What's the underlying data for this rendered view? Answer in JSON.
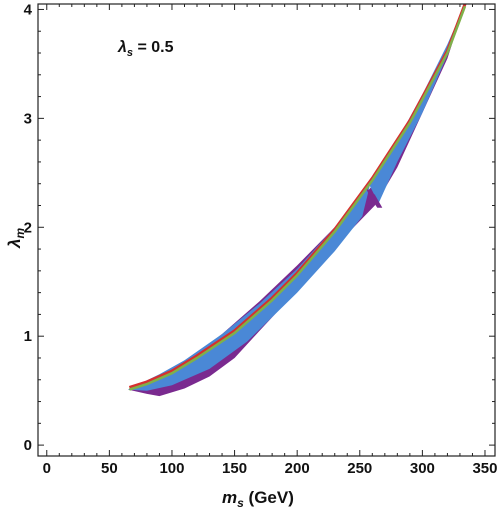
{
  "chart_data": {
    "type": "area",
    "annotation": {
      "symbol": "λ",
      "sub": "s",
      "rest": " = 0.5"
    },
    "xlabel": {
      "symbol": "m",
      "sub": "s",
      "rest": " (GeV)"
    },
    "ylabel": {
      "symbol": "λ",
      "sub": "m"
    },
    "xlim": [
      -7,
      358
    ],
    "ylim": [
      -0.1,
      4.05
    ],
    "xticks": [
      0,
      50,
      100,
      150,
      200,
      250,
      300,
      350
    ],
    "yticks": [
      0,
      1,
      2,
      3,
      4
    ],
    "xminor_step": 10,
    "yminor_step": 0.2,
    "colors": {
      "purple": "#7a2a8f",
      "blue": "#4a88d6",
      "red": "#d62f2f",
      "green": "#7fb04a",
      "frame": "#222222"
    },
    "regions": [
      {
        "color_key": "purple",
        "points": [
          [
            65,
            0.51
          ],
          [
            80,
            0.47
          ],
          [
            90,
            0.45
          ],
          [
            110,
            0.52
          ],
          [
            130,
            0.63
          ],
          [
            150,
            0.8
          ],
          [
            170,
            1.05
          ],
          [
            200,
            1.42
          ],
          [
            230,
            1.82
          ],
          [
            262,
            2.2
          ],
          [
            280,
            2.55
          ],
          [
            300,
            3.05
          ],
          [
            320,
            3.55
          ],
          [
            334,
            4.05
          ],
          [
            320,
            3.62
          ],
          [
            300,
            3.15
          ],
          [
            280,
            2.72
          ],
          [
            260,
            2.38
          ],
          [
            230,
            2.0
          ],
          [
            200,
            1.65
          ],
          [
            170,
            1.32
          ],
          [
            140,
            1.02
          ],
          [
            110,
            0.75
          ],
          [
            90,
            0.62
          ],
          [
            70,
            0.53
          ]
        ]
      },
      {
        "color_key": "blue",
        "points": [
          [
            65,
            0.51
          ],
          [
            80,
            0.5
          ],
          [
            100,
            0.55
          ],
          [
            130,
            0.7
          ],
          [
            160,
            0.95
          ],
          [
            200,
            1.4
          ],
          [
            230,
            1.78
          ],
          [
            252,
            2.1
          ],
          [
            258,
            2.38
          ],
          [
            265,
            2.22
          ],
          [
            280,
            2.6
          ],
          [
            300,
            3.05
          ],
          [
            320,
            3.58
          ],
          [
            334,
            4.05
          ],
          [
            320,
            3.68
          ],
          [
            300,
            3.22
          ],
          [
            280,
            2.8
          ],
          [
            260,
            2.43
          ],
          [
            230,
            2.0
          ],
          [
            200,
            1.62
          ],
          [
            170,
            1.3
          ],
          [
            140,
            1.02
          ],
          [
            110,
            0.78
          ],
          [
            90,
            0.65
          ],
          [
            70,
            0.54
          ]
        ]
      },
      {
        "color_key": "purple",
        "points": [
          [
            255,
            2.36
          ],
          [
            262,
            2.3
          ],
          [
            268,
            2.18
          ],
          [
            264,
            2.18
          ],
          [
            258,
            2.28
          ]
        ]
      }
    ],
    "lines": [
      {
        "color_key": "red",
        "points": [
          [
            66,
            0.53
          ],
          [
            80,
            0.58
          ],
          [
            100,
            0.68
          ],
          [
            120,
            0.82
          ],
          [
            150,
            1.05
          ],
          [
            180,
            1.35
          ],
          [
            200,
            1.58
          ],
          [
            230,
            1.98
          ],
          [
            260,
            2.45
          ],
          [
            290,
            2.98
          ],
          [
            320,
            3.62
          ],
          [
            334,
            4.05
          ]
        ]
      },
      {
        "color_key": "green",
        "points": [
          [
            66,
            0.51
          ],
          [
            80,
            0.56
          ],
          [
            100,
            0.66
          ],
          [
            120,
            0.8
          ],
          [
            150,
            1.03
          ],
          [
            180,
            1.33
          ],
          [
            200,
            1.56
          ],
          [
            230,
            1.96
          ],
          [
            260,
            2.43
          ],
          [
            290,
            2.96
          ],
          [
            320,
            3.6
          ],
          [
            334,
            4.03
          ]
        ]
      }
    ]
  }
}
